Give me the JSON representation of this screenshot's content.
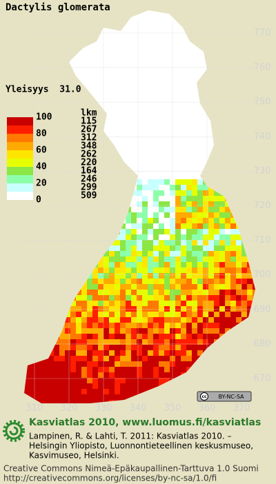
{
  "map": {
    "title": "Dactylis glomerata",
    "frequency": "Yleisyys  31.0",
    "yticks": [
      770,
      760,
      750,
      740,
      730,
      720,
      710,
      700,
      690,
      680,
      670
    ],
    "xticks": [
      310,
      320,
      330,
      340,
      350,
      360,
      370
    ],
    "legend": {
      "levels": [
        100,
        80,
        60,
        40,
        20,
        0
      ],
      "count_title": "lkm",
      "counts": [
        115,
        267,
        312,
        348,
        262,
        220,
        164,
        246,
        299,
        509
      ],
      "colors": [
        "#c80000",
        "#ff1e00",
        "#ff7800",
        "#ffaa00",
        "#ffe600",
        "#e6ff00",
        "#8ce646",
        "#8cffaa",
        "#c8ffff",
        "#ffffff"
      ]
    },
    "license_badge": "BY-NC-SA"
  },
  "footer": {
    "heading": "Kasviatlas 2010, www.luomus.fi/kasviatlas",
    "citation": [
      "Lampinen, R. & Lahti, T. 2011: Kasviatlas 2010. –",
      "Helsingin Yliopisto, Luonnontieteellinen keskusmuseo,",
      "Kasvimuseo, Helsinki."
    ],
    "license": [
      "Creative Commons Nimeä-Epäkaupallinen-Tarttuva 1.0 Suomi",
      "http://creativecommons.org/licenses/by-nc-sa/1.0/fi"
    ]
  }
}
